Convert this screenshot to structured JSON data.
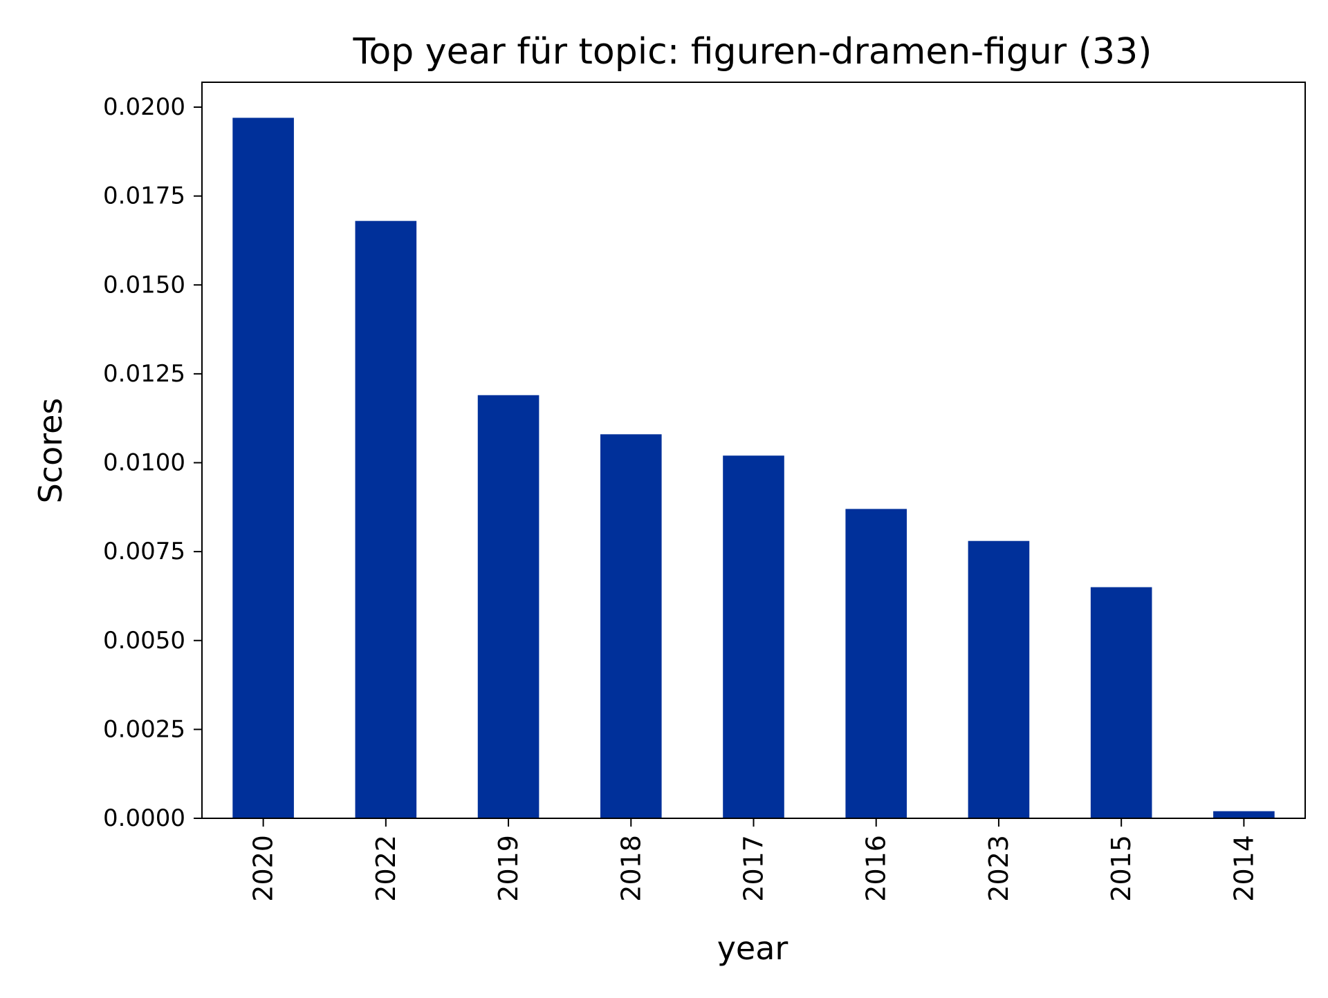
{
  "chart_data": {
    "type": "bar",
    "title": "Top year für topic: figuren-dramen-figur (33)",
    "xlabel": "year",
    "ylabel": "Scores",
    "categories": [
      "2020",
      "2022",
      "2019",
      "2018",
      "2017",
      "2016",
      "2023",
      "2015",
      "2014"
    ],
    "values": [
      0.0197,
      0.0168,
      0.0119,
      0.0108,
      0.0102,
      0.0087,
      0.0078,
      0.0065,
      0.0002
    ],
    "ylim": [
      0,
      0.0207
    ],
    "yticks": [
      0.0,
      0.0025,
      0.005,
      0.0075,
      0.01,
      0.0125,
      0.015,
      0.0175,
      0.02
    ],
    "ytick_labels": [
      "0.0000",
      "0.0025",
      "0.0050",
      "0.0075",
      "0.0100",
      "0.0125",
      "0.0150",
      "0.0175",
      "0.0200"
    ],
    "grid": false,
    "legend": "none",
    "bar_color": "#00309a",
    "xtick_rotation": "vertical"
  }
}
